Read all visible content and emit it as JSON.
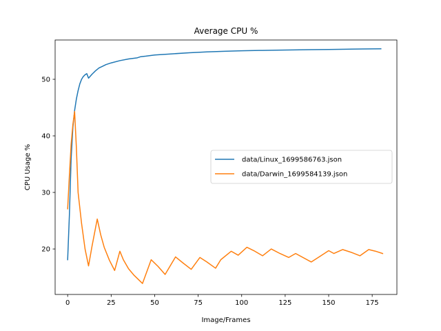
{
  "chart_data": {
    "type": "line",
    "title": "Average CPU %",
    "xlabel": "Image/Frames",
    "ylabel": "CPU Usage %",
    "xlim": [
      -7.2,
      189.2
    ],
    "ylim": [
      11.96,
      56.95
    ],
    "xticks": [
      0,
      25,
      50,
      75,
      100,
      125,
      150,
      175
    ],
    "yticks": [
      20,
      30,
      40,
      50
    ],
    "grid": false,
    "legend_position": "center-right",
    "series": [
      {
        "name": "data/Linux_1699586763.json",
        "color": "#1f77b4",
        "x": [
          0,
          1,
          2,
          3,
          4,
          5,
          6,
          7,
          8,
          9,
          10,
          11,
          12,
          14,
          16,
          18,
          20,
          22,
          25,
          30,
          35,
          40,
          42,
          45,
          50,
          60,
          70,
          80,
          90,
          100,
          110,
          120,
          130,
          140,
          150,
          160,
          170,
          180
        ],
        "values": [
          18.1,
          26.0,
          36.0,
          41.5,
          44.5,
          46.5,
          48.0,
          49.2,
          50.0,
          50.5,
          50.8,
          51.0,
          50.2,
          50.9,
          51.5,
          52.0,
          52.3,
          52.6,
          52.9,
          53.3,
          53.6,
          53.8,
          54.0,
          54.1,
          54.3,
          54.5,
          54.7,
          54.85,
          54.95,
          55.05,
          55.1,
          55.15,
          55.2,
          55.25,
          55.28,
          55.32,
          55.36,
          55.4
        ]
      },
      {
        "name": "data/Darwin_1699584139.json",
        "color": "#ff7f0e",
        "x": [
          0,
          1,
          2,
          3,
          4,
          5,
          6,
          8,
          10,
          12,
          14,
          17,
          19,
          21,
          24,
          27,
          30,
          32,
          35,
          38,
          43,
          48,
          52,
          56,
          62,
          66,
          71,
          76,
          80,
          85,
          88,
          94,
          98,
          103,
          107,
          112,
          117,
          122,
          127,
          131,
          140,
          145,
          150,
          153,
          158,
          163,
          168,
          173,
          177,
          181
        ],
        "values": [
          27.1,
          33.0,
          38.5,
          42.0,
          44.3,
          38.0,
          30.0,
          24.5,
          20.0,
          17.0,
          20.5,
          25.3,
          22.5,
          20.3,
          18.0,
          16.2,
          19.6,
          18.1,
          16.5,
          15.4,
          13.9,
          18.1,
          16.9,
          15.5,
          18.6,
          17.6,
          16.4,
          18.5,
          17.7,
          16.6,
          18.1,
          19.6,
          18.9,
          20.3,
          19.7,
          18.8,
          20.0,
          19.2,
          18.5,
          19.2,
          17.7,
          18.7,
          19.7,
          19.2,
          19.9,
          19.4,
          18.8,
          19.9,
          19.6,
          19.2
        ]
      }
    ]
  }
}
